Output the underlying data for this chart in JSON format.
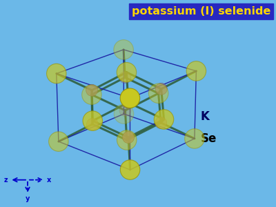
{
  "title": "potassium (I) selenide",
  "title_color": "#FFD700",
  "title_bg": "#2828C0",
  "bg_color": "#6BB8E8",
  "se_color": "#C8C820",
  "k_color": "#907090",
  "bond_color": "#2F6040",
  "cube_color": "#1818A0",
  "label_k": "K",
  "label_se": "Se",
  "elev": 22,
  "azim": -48
}
